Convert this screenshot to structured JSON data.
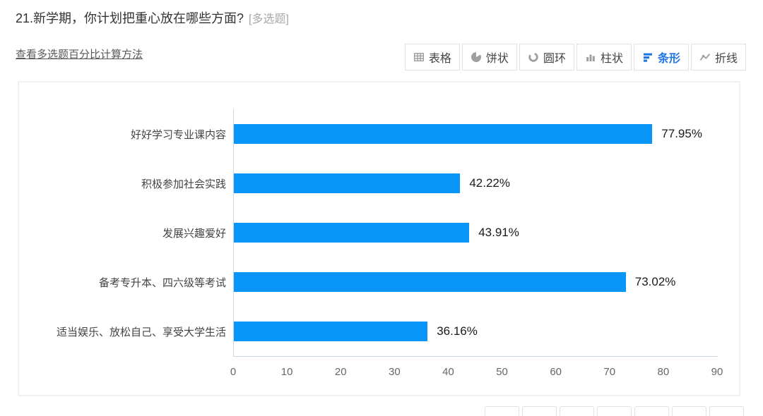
{
  "question": {
    "title": "21.新学期，你计划把重心放在哪些方面?",
    "tag": "[多选题]"
  },
  "links": {
    "percent_calc": "查看多选题百分比计算方法"
  },
  "toolbar": {
    "buttons": [
      {
        "label": "表格",
        "icon": "table-icon",
        "active": false
      },
      {
        "label": "饼状",
        "icon": "pie-icon",
        "active": false
      },
      {
        "label": "圆环",
        "icon": "donut-icon",
        "active": false
      },
      {
        "label": "柱状",
        "icon": "column-icon",
        "active": false
      },
      {
        "label": "条形",
        "icon": "bar-icon",
        "active": true
      },
      {
        "label": "折线",
        "icon": "line-icon",
        "active": false
      }
    ]
  },
  "chart_data": {
    "type": "bar",
    "orientation": "horizontal",
    "categories": [
      "好好学习专业课内容",
      "积极参加社会实践",
      "发展兴趣爱好",
      "备考专升本、四六级等考试",
      "适当娱乐、放松自己、享受大学生活"
    ],
    "values": [
      77.95,
      42.22,
      43.91,
      73.02,
      36.16
    ],
    "value_labels": [
      "77.95%",
      "42.22%",
      "43.91%",
      "73.02%",
      "36.16%"
    ],
    "x_ticks": [
      0,
      10,
      20,
      30,
      40,
      50,
      60,
      70,
      80,
      90
    ],
    "xlim": [
      0,
      90
    ],
    "xlabel": "",
    "ylabel": "",
    "grid": false,
    "legend": "none",
    "bar_color": "#0996f8",
    "axis_line_color": "#ccd6eb"
  },
  "bottom_toolbar": {
    "button_count": 7
  },
  "colors": {
    "bar": "#0996f8",
    "active_tab": "#2277e8",
    "axis_line": "#ccd6eb",
    "panel_border": "#f0f0f0"
  }
}
